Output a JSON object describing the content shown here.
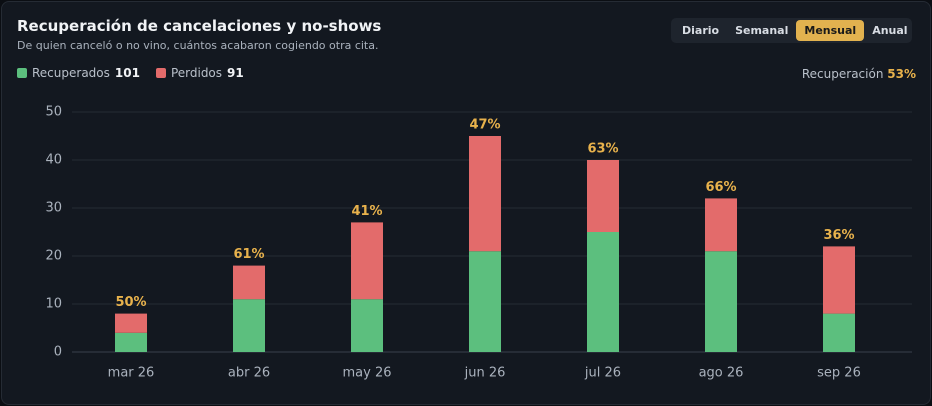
{
  "chart_data": {
    "type": "stacked_bar",
    "title": "Recuperación de cancelaciones y no-shows",
    "subtitle": "De quien canceló o no vino, cuántos acabaron cogiendo otra cita.",
    "tabs": [
      "Diario",
      "Semanal",
      "Mensual",
      "Anual"
    ],
    "active_tab": "Mensual",
    "summary": {
      "label": "Recuperación",
      "value": 53,
      "value_label": "53%"
    },
    "categories": [
      "mar 26",
      "abr 26",
      "may 26",
      "jun 26",
      "jul 26",
      "ago 26",
      "sep 26"
    ],
    "series": [
      {
        "name": "Recuperados",
        "total": 101,
        "color": "#5cbf7e",
        "values": [
          4,
          11,
          11,
          21,
          25,
          21,
          8
        ]
      },
      {
        "name": "Perdidos",
        "total": 91,
        "color": "#e36b6b",
        "values": [
          4,
          7,
          16,
          24,
          15,
          11,
          14
        ]
      }
    ],
    "rate": {
      "values": [
        50,
        61,
        41,
        47,
        63,
        66,
        36
      ],
      "value_labels": [
        "50%",
        "61%",
        "41%",
        "47%",
        "63%",
        "66%",
        "36%"
      ],
      "color": "#e8b24c"
    },
    "ylim": [
      0,
      50
    ],
    "yticks": [
      0,
      10,
      20,
      30,
      40,
      50
    ],
    "grid": true
  }
}
